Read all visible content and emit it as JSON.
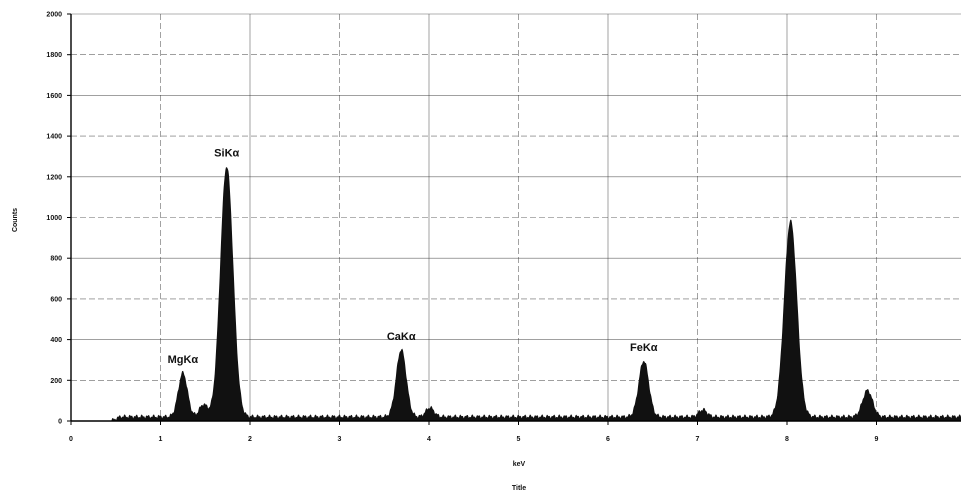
{
  "chart_data": {
    "type": "area",
    "title": "",
    "xlabel": "keV",
    "ylabel": "Counts",
    "caption": "Title",
    "xlim": [
      0,
      10
    ],
    "ylim": [
      0,
      2000
    ],
    "x_ticks": [
      0,
      1,
      2,
      3,
      4,
      5,
      6,
      7,
      8,
      9
    ],
    "y_ticks": [
      0,
      200,
      400,
      600,
      800,
      1000,
      1200,
      1400,
      1600,
      1800,
      2000
    ],
    "grid": true,
    "background_counts": 20,
    "peaks": [
      {
        "label": "MgKα",
        "energy": 1.25,
        "counts": 235
      },
      {
        "label": "SiKα",
        "energy": 1.74,
        "counts": 1250
      },
      {
        "label": "CaKα",
        "energy": 3.69,
        "counts": 350
      },
      {
        "label": "FeKα",
        "energy": 6.4,
        "counts": 295
      },
      {
        "label": "",
        "energy": 8.04,
        "counts": 980
      },
      {
        "label": "",
        "energy": 8.9,
        "counts": 150
      }
    ],
    "minor_peaks": [
      {
        "energy": 1.48,
        "counts": 80
      },
      {
        "energy": 4.01,
        "counts": 65
      },
      {
        "energy": 7.06,
        "counts": 55
      }
    ],
    "colors": {
      "fill": "#111111",
      "grid": "#333333",
      "axis": "#000000"
    }
  }
}
